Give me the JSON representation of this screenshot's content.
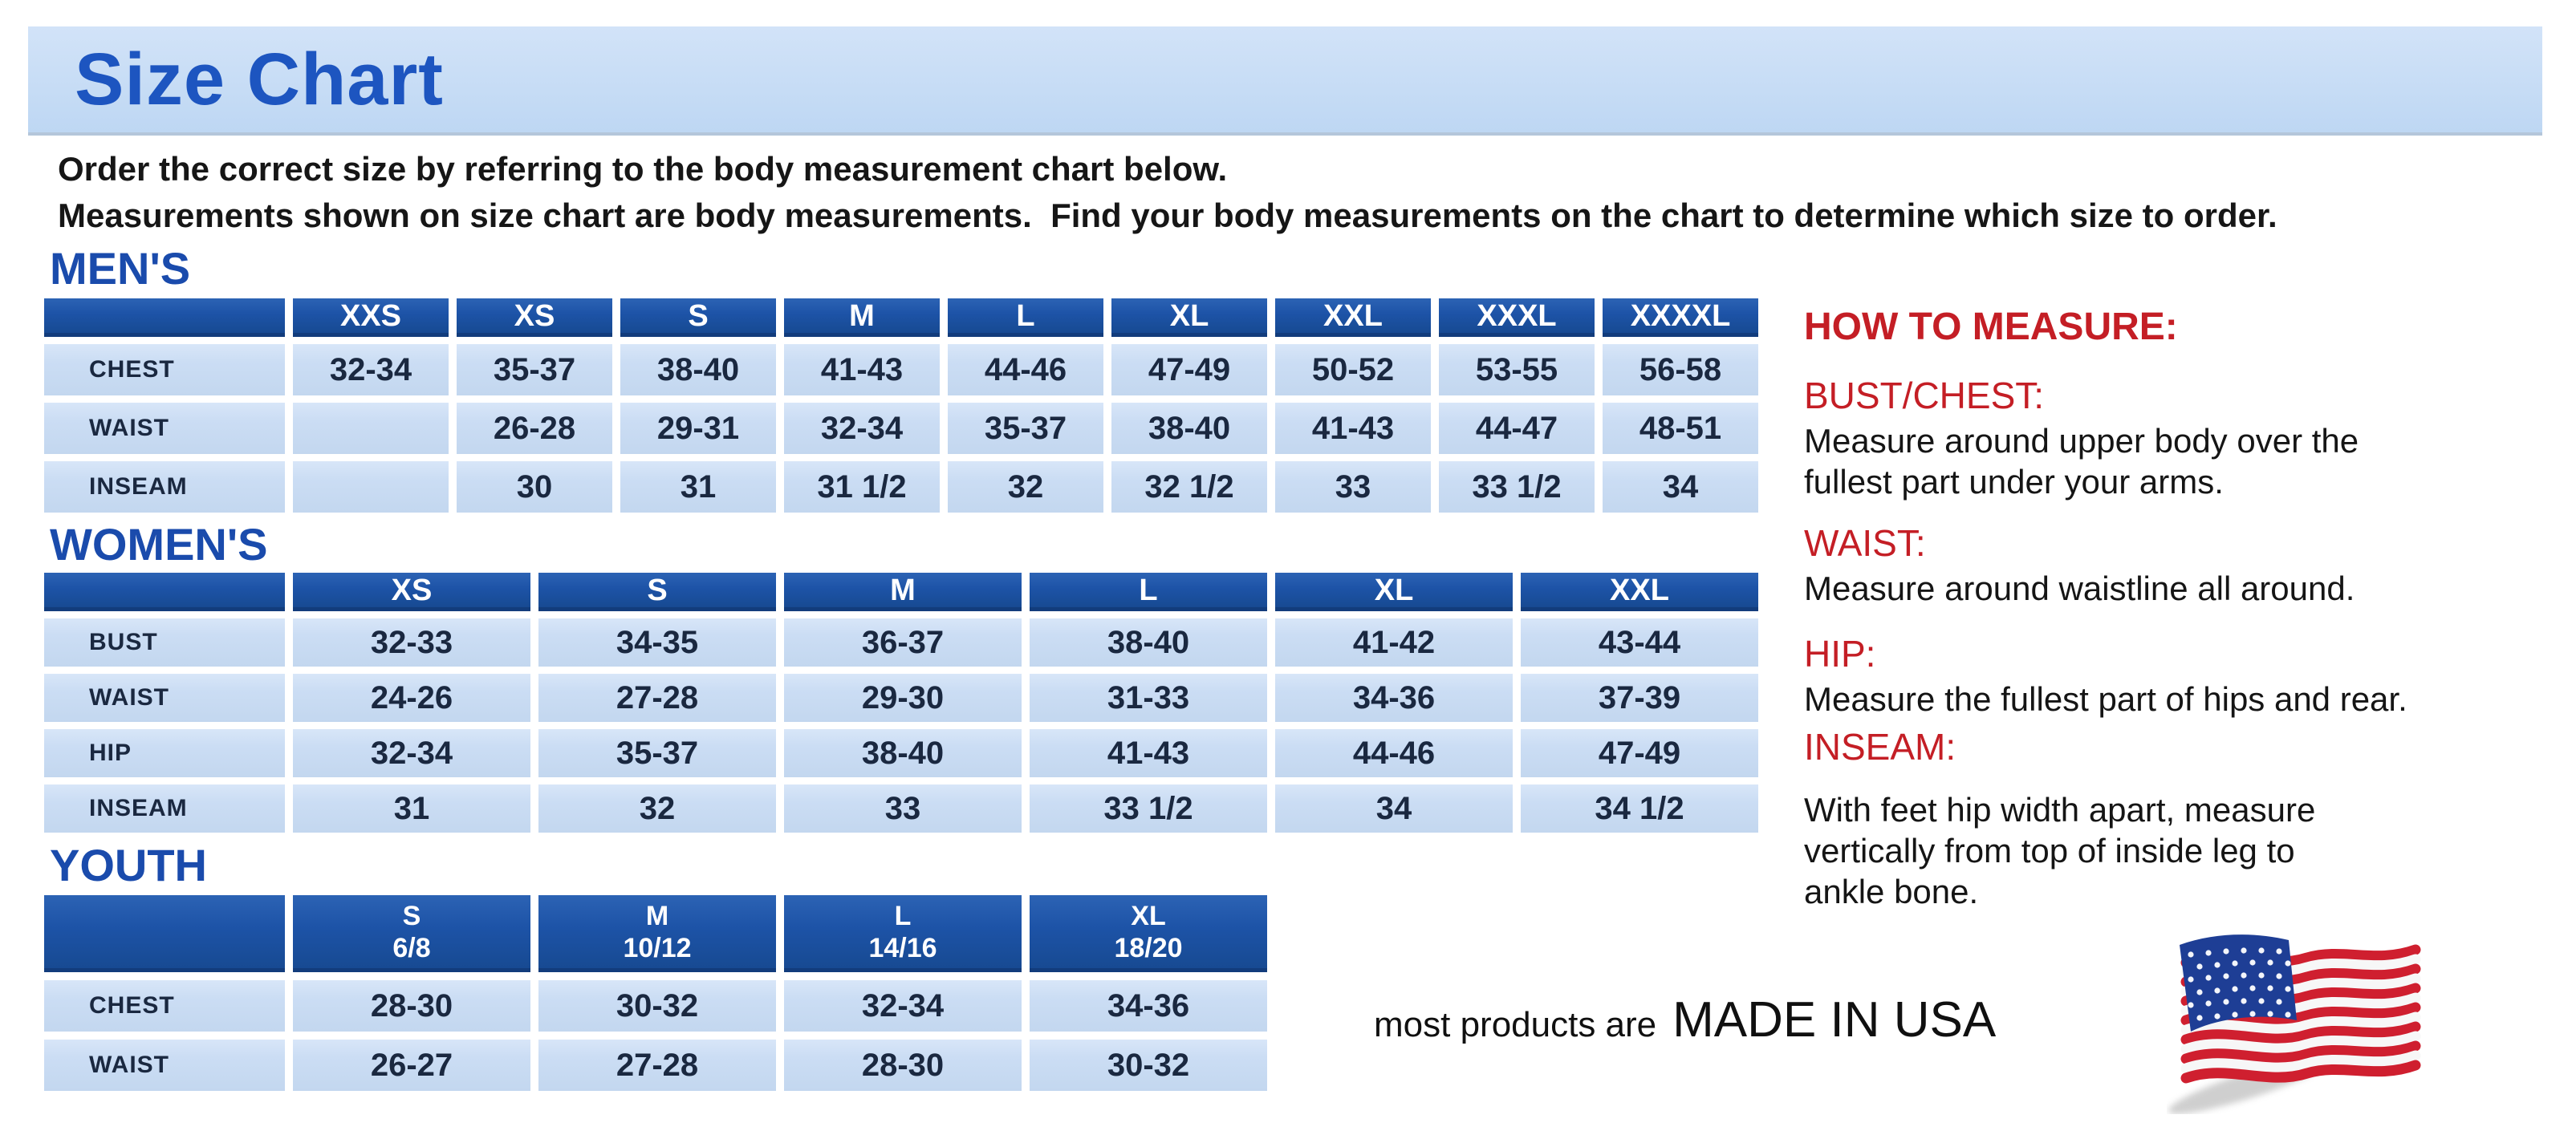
{
  "banner": {
    "title": "Size Chart"
  },
  "intro": {
    "line1": "Order the correct size by referring to the body measurement chart below.",
    "line2": "Measurements shown on size chart are body measurements.  Find your body measurements on the chart to determine which size to order."
  },
  "sections": [
    {
      "id": "mens",
      "heading": "MEN'S",
      "columns": [
        {
          "label": "XXS"
        },
        {
          "label": "XS"
        },
        {
          "label": "S"
        },
        {
          "label": "M"
        },
        {
          "label": "L"
        },
        {
          "label": "XL"
        },
        {
          "label": "XXL"
        },
        {
          "label": "XXXL"
        },
        {
          "label": "XXXXL"
        }
      ],
      "rows": [
        {
          "label": "CHEST",
          "cells": [
            "32-34",
            "35-37",
            "38-40",
            "41-43",
            "44-46",
            "47-49",
            "50-52",
            "53-55",
            "56-58"
          ]
        },
        {
          "label": "WAIST",
          "cells": [
            "",
            "26-28",
            "29-31",
            "32-34",
            "35-37",
            "38-40",
            "41-43",
            "44-47",
            "48-51"
          ]
        },
        {
          "label": "INSEAM",
          "cells": [
            "",
            "30",
            "31",
            "31 1/2",
            "32",
            "32 1/2",
            "33",
            "33 1/2",
            "34"
          ]
        }
      ]
    },
    {
      "id": "womens",
      "heading": "WOMEN'S",
      "columns": [
        {
          "label": "XS"
        },
        {
          "label": "S"
        },
        {
          "label": "M"
        },
        {
          "label": "L"
        },
        {
          "label": "XL"
        },
        {
          "label": "XXL"
        }
      ],
      "rows": [
        {
          "label": "BUST",
          "cells": [
            "32-33",
            "34-35",
            "36-37",
            "38-40",
            "41-42",
            "43-44"
          ]
        },
        {
          "label": "WAIST",
          "cells": [
            "24-26",
            "27-28",
            "29-30",
            "31-33",
            "34-36",
            "37-39"
          ]
        },
        {
          "label": "HIP",
          "cells": [
            "32-34",
            "35-37",
            "38-40",
            "41-43",
            "44-46",
            "47-49"
          ]
        },
        {
          "label": "INSEAM",
          "cells": [
            "31",
            "32",
            "33",
            "33 1/2",
            "34",
            "34 1/2"
          ]
        }
      ]
    },
    {
      "id": "youth",
      "heading": "YOUTH",
      "columns": [
        {
          "label": "S",
          "sub": "6/8"
        },
        {
          "label": "M",
          "sub": "10/12"
        },
        {
          "label": "L",
          "sub": "14/16"
        },
        {
          "label": "XL",
          "sub": "18/20"
        }
      ],
      "rows": [
        {
          "label": "CHEST",
          "cells": [
            "28-30",
            "30-32",
            "32-34",
            "34-36"
          ]
        },
        {
          "label": "WAIST",
          "cells": [
            "26-27",
            "27-28",
            "28-30",
            "30-32"
          ]
        }
      ]
    }
  ],
  "how_to_measure": {
    "title": "HOW TO MEASURE:",
    "items": [
      {
        "term": "BUST/CHEST:",
        "description": "Measure around upper body over the\nfullest part under your arms."
      },
      {
        "term": "WAIST:",
        "description": "Measure around waistline all around."
      },
      {
        "term": "HIP:",
        "description": "Measure the fullest part of hips and rear."
      },
      {
        "term": "INSEAM:",
        "description": "With feet hip width apart, measure\nvertically from top of inside leg to\nankle bone."
      }
    ]
  },
  "made_in_usa": {
    "prefix": "most products are",
    "label": "MADE IN USA"
  },
  "icons": {
    "flag": "us-flag"
  },
  "colors": {
    "banner_bg": "#c6dcf5",
    "title_blue": "#1d55c0",
    "heading_blue": "#1a4bac",
    "table_header_blue": "#1d53a7",
    "table_cell_blue": "#cbddf4",
    "table_text_navy": "#1a2840",
    "accent_red": "#c41e25",
    "body_text": "#151515"
  }
}
